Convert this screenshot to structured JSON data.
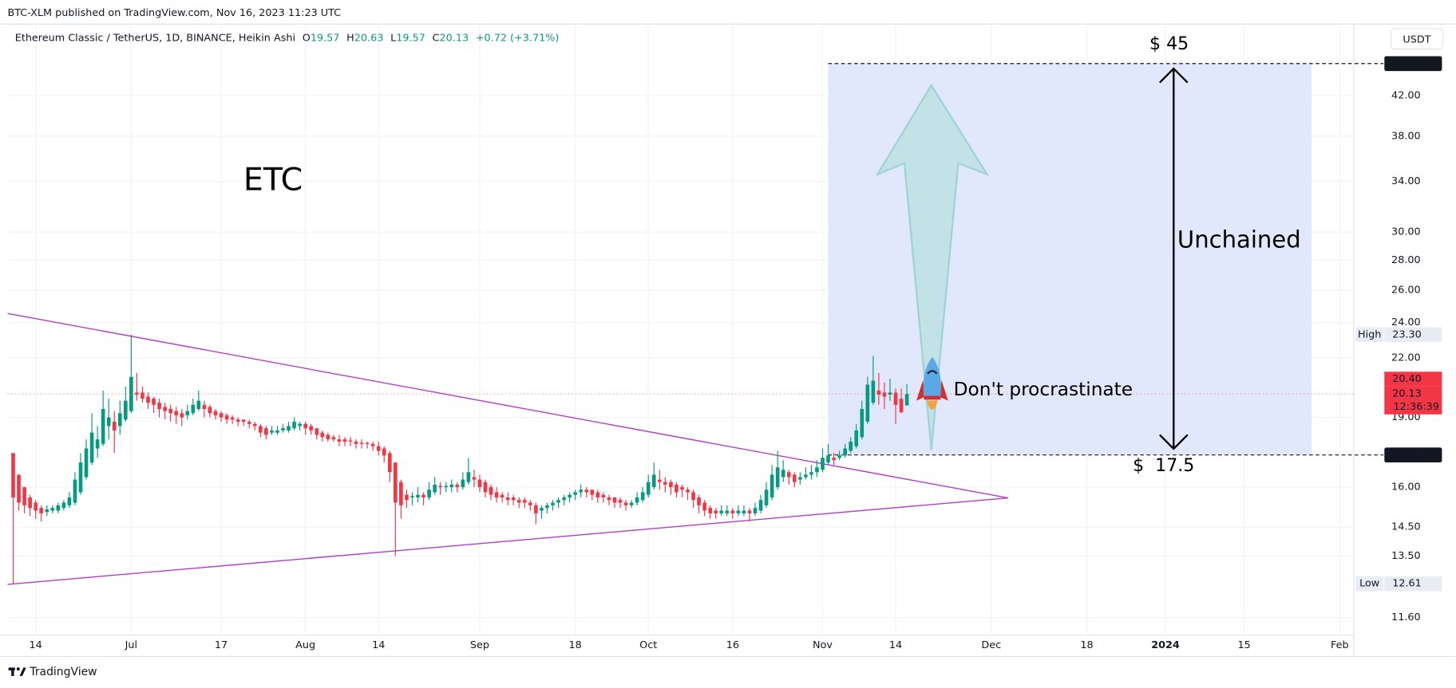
{
  "header": {
    "published": "BTC-XLM published on TradingView.com, Nov 16, 2023 11:23 UTC",
    "currency": "USDT"
  },
  "legend": {
    "title": "Ethereum Classic / TetherUS, 1D, BINANCE, Heikin Ashi",
    "items": [
      {
        "key": "O",
        "value": "19.57"
      },
      {
        "key": "H",
        "value": "20.63"
      },
      {
        "key": "L",
        "value": "19.57"
      },
      {
        "key": "C",
        "value": "20.13"
      }
    ],
    "change": "+0.72 (+3.71%)"
  },
  "footer": {
    "brand": "TradingView"
  },
  "chart_data": {
    "type": "candlestick",
    "log_scale": true,
    "grid": true,
    "up_color": "#089981",
    "down_color": "#f23645",
    "xlim": [
      "2023-06-09",
      "2024-02-03"
    ],
    "xticks": [
      {
        "value": "2023-06-14",
        "label": "14"
      },
      {
        "value": "2023-07-01",
        "label": "Jul"
      },
      {
        "value": "2023-07-17",
        "label": "17"
      },
      {
        "value": "2023-08-01",
        "label": "Aug"
      },
      {
        "value": "2023-08-14",
        "label": "14"
      },
      {
        "value": "2023-09-01",
        "label": "Sep"
      },
      {
        "value": "2023-09-18",
        "label": "18"
      },
      {
        "value": "2023-10-01",
        "label": "Oct"
      },
      {
        "value": "2023-10-16",
        "label": "16"
      },
      {
        "value": "2023-11-01",
        "label": "Nov"
      },
      {
        "value": "2023-11-14",
        "label": "14"
      },
      {
        "value": "2023-12-01",
        "label": "Dec"
      },
      {
        "value": "2023-12-18",
        "label": "18"
      },
      {
        "value": "2024-01-01",
        "label": "2024"
      },
      {
        "value": "2024-01-15",
        "label": "15"
      },
      {
        "value": "2024-02-01",
        "label": "Feb"
      }
    ],
    "ylim": [
      11.16,
      46.35
    ],
    "yticks": [
      {
        "value": 11.6,
        "label": "11.60"
      },
      {
        "value": 13.5,
        "label": "13.50"
      },
      {
        "value": 14.5,
        "label": "14.50"
      },
      {
        "value": 16,
        "label": "16.00"
      },
      {
        "value": 19,
        "label": "19.00"
      },
      {
        "value": 22,
        "label": "22.00"
      },
      {
        "value": 24,
        "label": "24.00"
      },
      {
        "value": 26,
        "label": "26.00"
      },
      {
        "value": 28,
        "label": "28.00"
      },
      {
        "value": 30,
        "label": "30.00"
      },
      {
        "value": 34,
        "label": "34.00"
      },
      {
        "value": 38,
        "label": "38.00"
      },
      {
        "value": 42,
        "label": "42.00"
      }
    ],
    "high": {
      "label": "High",
      "value": 23.3,
      "value_label": "23.30"
    },
    "low": {
      "label": "Low",
      "value": 12.61
    },
    "price_labels": [
      {
        "value": 20.4,
        "value_label": "20.40"
      },
      {
        "value": 20.13,
        "value_label": "20.13",
        "countdown": "12:36:39"
      }
    ],
    "box": {
      "start": "2023-11-02",
      "end": "2024-01-27",
      "top": 45.45,
      "bottom": 17.32,
      "color": "#e1e8fc"
    },
    "trendlines": {
      "color": "#b23ec8",
      "lines": [
        {
          "start": [
            "2023-06-09",
            24.55
          ],
          "end": [
            "2023-12-04",
            15.58
          ]
        },
        {
          "start": [
            "2023-06-09",
            12.59
          ],
          "end": [
            "2023-12-04",
            15.58
          ]
        }
      ]
    },
    "annotations": {
      "name": "ETC",
      "target": "$ 45",
      "base": "$  17.5",
      "range": "Unchained",
      "rocket": "Don't procrastinate"
    },
    "candles": [
      [
        "2023-06-10",
        17.4,
        17.4,
        12.61,
        15.6
      ],
      [
        "2023-06-11",
        16.5,
        16.5,
        15.1,
        15.4
      ],
      [
        "2023-06-12",
        16.0,
        16.0,
        15.0,
        15.3
      ],
      [
        "2023-06-13",
        15.6,
        15.7,
        14.9,
        15.2
      ],
      [
        "2023-06-14",
        15.4,
        15.5,
        14.8,
        15.1
      ],
      [
        "2023-06-15",
        15.2,
        15.3,
        14.7,
        15.0
      ],
      [
        "2023-06-16",
        15.05,
        15.3,
        14.9,
        15.15
      ],
      [
        "2023-06-17",
        15.1,
        15.3,
        15.0,
        15.2
      ],
      [
        "2023-06-18",
        15.1,
        15.4,
        15.0,
        15.3
      ],
      [
        "2023-06-19",
        15.2,
        15.5,
        15.1,
        15.4
      ],
      [
        "2023-06-20",
        15.3,
        15.8,
        15.2,
        15.6
      ],
      [
        "2023-06-21",
        15.4,
        16.6,
        15.3,
        16.3
      ],
      [
        "2023-06-22",
        15.8,
        17.4,
        15.7,
        17.0
      ],
      [
        "2023-06-23",
        16.4,
        18.0,
        16.3,
        17.6
      ],
      [
        "2023-06-24",
        17.0,
        19.2,
        16.9,
        18.3
      ],
      [
        "2023-06-25",
        17.6,
        18.6,
        17.2,
        18.0
      ],
      [
        "2023-06-26",
        17.8,
        20.3,
        17.7,
        19.4
      ],
      [
        "2023-06-27",
        18.6,
        19.9,
        18.0,
        19.0
      ],
      [
        "2023-06-28",
        18.8,
        19.3,
        17.4,
        18.4
      ],
      [
        "2023-06-29",
        18.6,
        19.8,
        18.2,
        19.2
      ],
      [
        "2023-06-30",
        18.9,
        20.5,
        18.8,
        19.8
      ],
      [
        "2023-07-01",
        19.3,
        23.3,
        19.2,
        21.0
      ],
      [
        "2023-07-02",
        20.2,
        21.2,
        19.8,
        20.1
      ],
      [
        "2023-07-03",
        20.2,
        20.5,
        19.7,
        19.9
      ],
      [
        "2023-07-04",
        20.0,
        20.2,
        19.4,
        19.7
      ],
      [
        "2023-07-05",
        19.9,
        20.0,
        19.2,
        19.6
      ],
      [
        "2023-07-06",
        19.7,
        19.9,
        19.0,
        19.4
      ],
      [
        "2023-07-07",
        19.5,
        19.7,
        18.9,
        19.3
      ],
      [
        "2023-07-08",
        19.4,
        19.6,
        18.8,
        19.2
      ],
      [
        "2023-07-09",
        19.3,
        19.5,
        18.7,
        19.1
      ],
      [
        "2023-07-10",
        19.2,
        19.4,
        18.6,
        19.0
      ],
      [
        "2023-07-11",
        19.1,
        19.6,
        18.9,
        19.3
      ],
      [
        "2023-07-12",
        19.2,
        19.9,
        19.1,
        19.6
      ],
      [
        "2023-07-13",
        19.4,
        20.3,
        19.3,
        19.8
      ],
      [
        "2023-07-14",
        19.6,
        19.8,
        19.0,
        19.4
      ],
      [
        "2023-07-15",
        19.5,
        19.6,
        19.0,
        19.2
      ],
      [
        "2023-07-16",
        19.3,
        19.4,
        18.9,
        19.1
      ],
      [
        "2023-07-17",
        19.2,
        19.3,
        18.8,
        19.0
      ],
      [
        "2023-07-18",
        19.1,
        19.2,
        18.7,
        18.9
      ],
      [
        "2023-07-19",
        19.0,
        19.1,
        18.7,
        18.9
      ],
      [
        "2023-07-20",
        18.9,
        19.0,
        18.6,
        18.8
      ],
      [
        "2023-07-21",
        18.9,
        18.9,
        18.6,
        18.8
      ],
      [
        "2023-07-22",
        18.8,
        18.9,
        18.5,
        18.7
      ],
      [
        "2023-07-23",
        18.7,
        18.8,
        18.4,
        18.6
      ],
      [
        "2023-07-24",
        18.6,
        18.7,
        18.1,
        18.3
      ],
      [
        "2023-07-25",
        18.5,
        18.6,
        18.0,
        18.2
      ],
      [
        "2023-07-26",
        18.3,
        18.6,
        18.2,
        18.4
      ],
      [
        "2023-07-27",
        18.3,
        18.6,
        18.2,
        18.4
      ],
      [
        "2023-07-28",
        18.4,
        18.7,
        18.3,
        18.5
      ],
      [
        "2023-07-29",
        18.4,
        18.8,
        18.3,
        18.6
      ],
      [
        "2023-07-30",
        18.5,
        19.0,
        18.4,
        18.8
      ],
      [
        "2023-07-31",
        18.6,
        18.8,
        18.4,
        18.7
      ],
      [
        "2023-08-01",
        18.7,
        18.8,
        18.2,
        18.5
      ],
      [
        "2023-08-02",
        18.6,
        18.7,
        18.2,
        18.4
      ],
      [
        "2023-08-03",
        18.5,
        18.5,
        18.0,
        18.2
      ],
      [
        "2023-08-04",
        18.3,
        18.4,
        17.9,
        18.1
      ],
      [
        "2023-08-05",
        18.2,
        18.3,
        17.9,
        18.0
      ],
      [
        "2023-08-06",
        18.1,
        18.2,
        17.9,
        18.0
      ],
      [
        "2023-08-07",
        18.0,
        18.2,
        17.7,
        17.9
      ],
      [
        "2023-08-08",
        18.0,
        18.1,
        17.7,
        17.9
      ],
      [
        "2023-08-09",
        17.95,
        18.1,
        17.7,
        17.9
      ],
      [
        "2023-08-10",
        17.9,
        18.0,
        17.6,
        17.8
      ],
      [
        "2023-08-11",
        17.85,
        18.0,
        17.6,
        17.8
      ],
      [
        "2023-08-12",
        17.85,
        17.9,
        17.6,
        17.8
      ],
      [
        "2023-08-13",
        17.8,
        17.9,
        17.5,
        17.7
      ],
      [
        "2023-08-14",
        17.7,
        17.9,
        17.3,
        17.5
      ],
      [
        "2023-08-15",
        17.6,
        17.7,
        17.0,
        17.3
      ],
      [
        "2023-08-16",
        17.4,
        17.5,
        16.2,
        16.6
      ],
      [
        "2023-08-17",
        17.0,
        17.0,
        13.5,
        15.4
      ],
      [
        "2023-08-18",
        16.2,
        16.3,
        14.8,
        15.3
      ],
      [
        "2023-08-19",
        15.7,
        15.9,
        15.2,
        15.5
      ],
      [
        "2023-08-20",
        15.6,
        15.8,
        15.3,
        15.65
      ],
      [
        "2023-08-21",
        15.6,
        16.0,
        15.4,
        15.7
      ],
      [
        "2023-08-22",
        15.7,
        15.8,
        15.3,
        15.6
      ],
      [
        "2023-08-23",
        15.6,
        16.2,
        15.5,
        15.9
      ],
      [
        "2023-08-24",
        15.8,
        16.4,
        15.7,
        16.1
      ],
      [
        "2023-08-25",
        16.05,
        16.2,
        15.7,
        16.0
      ],
      [
        "2023-08-26",
        16.0,
        16.2,
        15.8,
        16.05
      ],
      [
        "2023-08-27",
        16.0,
        16.3,
        15.8,
        16.1
      ],
      [
        "2023-08-28",
        16.1,
        16.2,
        15.8,
        16.0
      ],
      [
        "2023-08-29",
        16.0,
        16.6,
        15.9,
        16.3
      ],
      [
        "2023-08-30",
        16.2,
        17.2,
        16.1,
        16.6
      ],
      [
        "2023-08-31",
        16.4,
        16.7,
        16.0,
        16.3
      ],
      [
        "2023-09-01",
        16.3,
        16.5,
        15.8,
        16.0
      ],
      [
        "2023-09-02",
        16.2,
        16.3,
        15.6,
        15.8
      ],
      [
        "2023-09-03",
        16.0,
        16.1,
        15.5,
        15.7
      ],
      [
        "2023-09-04",
        15.8,
        16.0,
        15.4,
        15.6
      ],
      [
        "2023-09-05",
        15.7,
        15.8,
        15.4,
        15.6
      ],
      [
        "2023-09-06",
        15.6,
        15.8,
        15.3,
        15.5
      ],
      [
        "2023-09-07",
        15.6,
        15.7,
        15.3,
        15.5
      ],
      [
        "2023-09-08",
        15.5,
        15.6,
        15.2,
        15.4
      ],
      [
        "2023-09-09",
        15.5,
        15.6,
        15.2,
        15.4
      ],
      [
        "2023-09-10",
        15.4,
        15.5,
        15.1,
        15.3
      ],
      [
        "2023-09-11",
        15.3,
        15.4,
        14.6,
        15.0
      ],
      [
        "2023-09-12",
        15.1,
        15.3,
        14.8,
        15.2
      ],
      [
        "2023-09-13",
        15.2,
        15.4,
        15.0,
        15.3
      ],
      [
        "2023-09-14",
        15.3,
        15.5,
        15.1,
        15.4
      ],
      [
        "2023-09-15",
        15.4,
        15.6,
        15.2,
        15.5
      ],
      [
        "2023-09-16",
        15.5,
        15.7,
        15.3,
        15.6
      ],
      [
        "2023-09-17",
        15.6,
        15.8,
        15.4,
        15.7
      ],
      [
        "2023-09-18",
        15.7,
        15.9,
        15.5,
        15.8
      ],
      [
        "2023-09-19",
        15.8,
        16.1,
        15.6,
        15.9
      ],
      [
        "2023-09-20",
        15.9,
        16.0,
        15.6,
        15.8
      ],
      [
        "2023-09-21",
        15.9,
        15.9,
        15.5,
        15.7
      ],
      [
        "2023-09-22",
        15.8,
        15.9,
        15.4,
        15.6
      ],
      [
        "2023-09-23",
        15.7,
        15.8,
        15.4,
        15.6
      ],
      [
        "2023-09-24",
        15.6,
        15.7,
        15.3,
        15.5
      ],
      [
        "2023-09-25",
        15.6,
        15.6,
        15.2,
        15.4
      ],
      [
        "2023-09-26",
        15.5,
        15.6,
        15.2,
        15.4
      ],
      [
        "2023-09-27",
        15.4,
        15.5,
        15.1,
        15.3
      ],
      [
        "2023-09-28",
        15.3,
        15.5,
        15.2,
        15.4
      ],
      [
        "2023-09-29",
        15.4,
        15.8,
        15.3,
        15.6
      ],
      [
        "2023-09-30",
        15.5,
        16.0,
        15.4,
        15.8
      ],
      [
        "2023-10-01",
        15.7,
        16.5,
        15.6,
        16.2
      ],
      [
        "2023-10-02",
        16.0,
        17.0,
        15.9,
        16.5
      ],
      [
        "2023-10-03",
        16.3,
        16.7,
        15.9,
        16.2
      ],
      [
        "2023-10-04",
        16.2,
        16.4,
        15.8,
        16.1
      ],
      [
        "2023-10-05",
        16.2,
        16.3,
        15.7,
        16.0
      ],
      [
        "2023-10-06",
        16.1,
        16.2,
        15.6,
        15.8
      ],
      [
        "2023-10-07",
        16.0,
        16.1,
        15.6,
        15.9
      ],
      [
        "2023-10-08",
        15.9,
        16.0,
        15.5,
        15.8
      ],
      [
        "2023-10-09",
        15.8,
        15.9,
        15.2,
        15.5
      ],
      [
        "2023-10-10",
        15.6,
        15.7,
        15.0,
        15.3
      ],
      [
        "2023-10-11",
        15.4,
        15.5,
        14.9,
        15.1
      ],
      [
        "2023-10-12",
        15.2,
        15.3,
        14.8,
        15.0
      ],
      [
        "2023-10-13",
        15.1,
        15.2,
        14.8,
        15.0
      ],
      [
        "2023-10-14",
        15.0,
        15.3,
        14.9,
        15.1
      ],
      [
        "2023-10-15",
        15.0,
        15.3,
        14.9,
        15.1
      ],
      [
        "2023-10-16",
        15.1,
        15.2,
        14.8,
        15.0
      ],
      [
        "2023-10-17",
        15.0,
        15.3,
        14.9,
        15.1
      ],
      [
        "2023-10-18",
        15.0,
        15.3,
        14.9,
        15.1
      ],
      [
        "2023-10-19",
        15.1,
        15.2,
        14.7,
        15.0
      ],
      [
        "2023-10-20",
        15.0,
        15.4,
        14.9,
        15.2
      ],
      [
        "2023-10-21",
        15.1,
        15.7,
        15.0,
        15.5
      ],
      [
        "2023-10-22",
        15.3,
        16.2,
        15.2,
        15.9
      ],
      [
        "2023-10-23",
        15.6,
        16.9,
        15.5,
        16.5
      ],
      [
        "2023-10-24",
        16.0,
        17.5,
        15.9,
        16.8
      ],
      [
        "2023-10-25",
        16.4,
        17.1,
        16.2,
        16.7
      ],
      [
        "2023-10-26",
        16.6,
        16.7,
        16.1,
        16.4
      ],
      [
        "2023-10-27",
        16.5,
        16.6,
        16.0,
        16.2
      ],
      [
        "2023-10-28",
        16.3,
        16.6,
        16.1,
        16.4
      ],
      [
        "2023-10-29",
        16.4,
        16.8,
        16.3,
        16.5
      ],
      [
        "2023-10-30",
        16.5,
        16.9,
        16.3,
        16.6
      ],
      [
        "2023-10-31",
        16.6,
        17.1,
        16.4,
        16.8
      ],
      [
        "2023-11-01",
        16.7,
        17.6,
        16.6,
        17.2
      ],
      [
        "2023-11-02",
        17.0,
        17.8,
        16.9,
        17.3
      ],
      [
        "2023-11-03",
        17.2,
        17.4,
        16.9,
        17.1
      ],
      [
        "2023-11-04",
        17.2,
        17.5,
        17.1,
        17.3
      ],
      [
        "2023-11-05",
        17.3,
        17.8,
        17.2,
        17.6
      ],
      [
        "2023-11-06",
        17.5,
        18.1,
        17.4,
        17.9
      ],
      [
        "2023-11-07",
        17.7,
        18.7,
        17.6,
        18.4
      ],
      [
        "2023-11-08",
        18.1,
        19.8,
        18.0,
        19.4
      ],
      [
        "2023-11-09",
        18.8,
        21.0,
        18.7,
        20.6
      ],
      [
        "2023-11-10",
        19.7,
        22.1,
        19.6,
        20.8
      ],
      [
        "2023-11-11",
        20.3,
        21.2,
        19.6,
        20.1
      ],
      [
        "2023-11-12",
        20.2,
        20.7,
        19.4,
        20.0
      ],
      [
        "2023-11-13",
        20.1,
        20.9,
        19.8,
        20.2
      ],
      [
        "2023-11-14",
        20.2,
        20.4,
        18.7,
        19.6
      ],
      [
        "2023-11-15",
        19.9,
        20.4,
        19.2,
        19.24
      ],
      [
        "2023-11-16",
        19.57,
        20.63,
        19.57,
        20.13
      ]
    ]
  }
}
